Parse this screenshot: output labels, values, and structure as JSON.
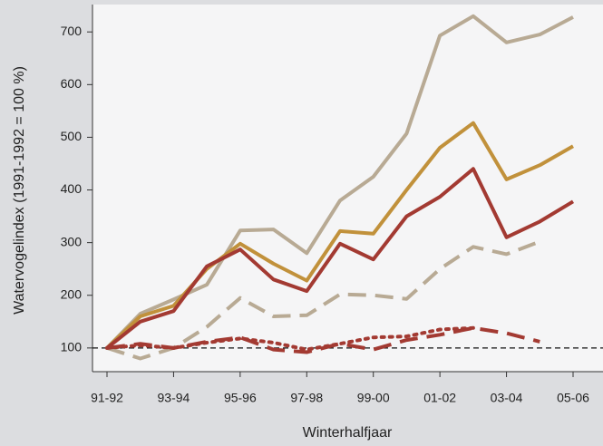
{
  "chart_data": {
    "type": "line",
    "ylabel": "Watervogelindex (1991-1992 = 100 %)",
    "xlabel": "Winterhalfjaar",
    "categories": [
      "91-92",
      null,
      "93-94",
      null,
      "95-96",
      null,
      "97-98",
      null,
      "99-00",
      null,
      "01-02",
      null,
      "03-04",
      null,
      "05-06"
    ],
    "series": [
      {
        "color": "#b8aa94",
        "dash": "solid",
        "values": [
          100,
          165,
          192,
          220,
          323,
          325,
          280,
          380,
          425,
          507,
          693,
          730,
          680,
          695,
          728
        ]
      },
      {
        "color": "#c1913b",
        "dash": "solid",
        "values": [
          100,
          160,
          180,
          250,
          298,
          260,
          228,
          322,
          317,
          400,
          480,
          527,
          420,
          447,
          483
        ]
      },
      {
        "color": "#a33a32",
        "dash": "solid",
        "values": [
          100,
          150,
          170,
          255,
          287,
          230,
          208,
          298,
          268,
          350,
          387,
          440,
          310,
          340,
          378
        ]
      },
      {
        "color": "#b8aa94",
        "dash": "dashed",
        "values": [
          100,
          80,
          100,
          140,
          195,
          160,
          162,
          202,
          200,
          193,
          250,
          292,
          278,
          302,
          null
        ]
      },
      {
        "color": "#a33a32",
        "dash": "dotted",
        "values": [
          100,
          105,
          100,
          110,
          118,
          110,
          97,
          108,
          120,
          122,
          135,
          138,
          null,
          null,
          null
        ]
      },
      {
        "color": "#a33a32",
        "dash": "dashed",
        "values": [
          100,
          108,
          100,
          112,
          120,
          97,
          92,
          108,
          97,
          115,
          125,
          138,
          128,
          112,
          null
        ]
      }
    ],
    "reference_line": 100,
    "ylim": [
      55,
      752
    ],
    "yticks": [
      100,
      200,
      300,
      400,
      500,
      600,
      700
    ]
  }
}
